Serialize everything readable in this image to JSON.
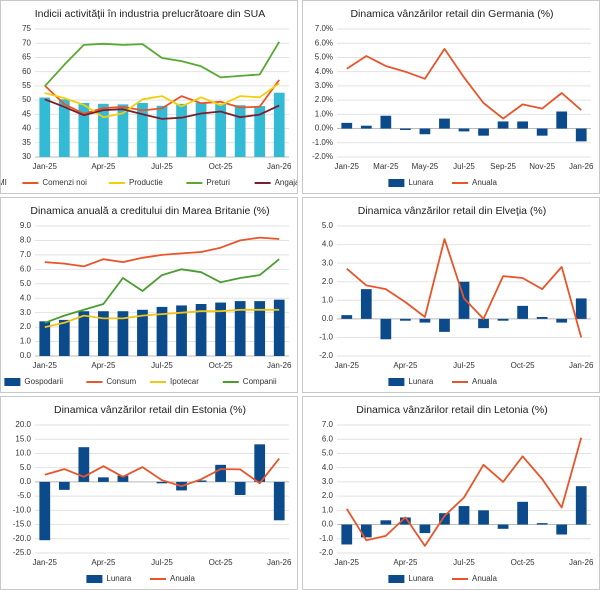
{
  "chart_data": [
    {
      "type": "combo",
      "title": "Indicii activităţii în industria prelucrătoare din SUA",
      "categories": [
        "Jan-25",
        null,
        null,
        "Apr-25",
        null,
        null,
        "Jul-25",
        null,
        null,
        "Oct-25",
        null,
        null,
        "Jan-26"
      ],
      "series": [
        {
          "name": "PMI",
          "kind": "bar",
          "color": "#33bbd6",
          "values": [
            50.9,
            50.3,
            49.0,
            48.7,
            48.5,
            49.0,
            48.0,
            48.7,
            49.1,
            48.7,
            48.2,
            47.9,
            52.6
          ]
        },
        {
          "name": "Comenzi noi",
          "kind": "line",
          "color": "#e8552a",
          "values": [
            55.1,
            48.6,
            45.2,
            47.2,
            47.6,
            46.4,
            47.1,
            51.4,
            48.9,
            49.4,
            47.4,
            47.7,
            57.1
          ]
        },
        {
          "name": "Productie",
          "kind": "line",
          "color": "#f2cf0a",
          "values": [
            52.5,
            50.7,
            48.3,
            44.0,
            45.4,
            50.3,
            51.4,
            47.8,
            51.0,
            48.2,
            51.4,
            51.0,
            55.9
          ]
        },
        {
          "name": "Preturi",
          "kind": "line",
          "color": "#58a832",
          "values": [
            54.9,
            62.4,
            69.4,
            69.8,
            69.4,
            69.7,
            64.8,
            63.7,
            61.9,
            58.0,
            58.5,
            59.0,
            70.5
          ]
        },
        {
          "name": "Angajati",
          "kind": "line",
          "color": "#7a1f2e",
          "values": [
            50.3,
            47.6,
            44.7,
            46.5,
            46.8,
            45.0,
            43.4,
            43.8,
            45.3,
            46.0,
            44.0,
            44.9,
            48.1
          ]
        }
      ],
      "ylim": [
        30,
        75
      ],
      "yticks": [
        30,
        35,
        40,
        45,
        50,
        55,
        60,
        65,
        70,
        75
      ],
      "grid": true
    },
    {
      "type": "combo",
      "title": "Dinamica vânzărilor retail din Germania (%)",
      "categories": [
        "Jan-25",
        null,
        "Mar-25",
        null,
        "May-25",
        null,
        "Jul-25",
        null,
        "Sep-25",
        null,
        "Nov-25",
        null,
        "Jan-26"
      ],
      "series": [
        {
          "name": "Lunara",
          "kind": "bar",
          "color": "#0b4a8b",
          "values": [
            0.4,
            0.2,
            0.9,
            -0.1,
            -0.4,
            0.7,
            -0.2,
            -0.5,
            0.5,
            0.5,
            -0.5,
            1.2,
            -0.9
          ]
        },
        {
          "name": "Anuala",
          "kind": "line",
          "color": "#e8552a",
          "values": [
            4.2,
            5.1,
            4.4,
            4.0,
            3.5,
            5.6,
            3.6,
            1.8,
            0.7,
            1.7,
            1.4,
            2.5,
            1.3
          ]
        }
      ],
      "ylim": [
        -2,
        7
      ],
      "yticks": [
        {
          "value": -2,
          "label": "-2.0%"
        },
        {
          "value": -1,
          "label": "-1.0%"
        },
        {
          "value": 0,
          "label": "0.0%"
        },
        {
          "value": 1,
          "label": "1.0%"
        },
        {
          "value": 2,
          "label": "2.0%"
        },
        {
          "value": 3,
          "label": "3.0%"
        },
        {
          "value": 4,
          "label": "4.0%"
        },
        {
          "value": 5,
          "label": "5.0%"
        },
        {
          "value": 6,
          "label": "6.0%"
        },
        {
          "value": 7,
          "label": "7.0%"
        }
      ],
      "grid": true
    },
    {
      "type": "combo",
      "title": "Dinamica anuală a creditului din Marea Britanie (%)",
      "categories": [
        "Jan-25",
        null,
        null,
        "Apr-25",
        null,
        null,
        "Jul-25",
        null,
        null,
        "Oct-25",
        null,
        null,
        "Jan-26"
      ],
      "series": [
        {
          "name": "Gospodarii",
          "kind": "bar",
          "color": "#0b4a8b",
          "values": [
            2.4,
            2.5,
            3.1,
            3.1,
            3.1,
            3.2,
            3.4,
            3.5,
            3.6,
            3.7,
            3.8,
            3.8,
            3.9
          ]
        },
        {
          "name": "Consum",
          "kind": "line",
          "color": "#e8552a",
          "values": [
            6.5,
            6.4,
            6.2,
            6.7,
            6.5,
            6.8,
            7.0,
            7.1,
            7.2,
            7.5,
            8.0,
            8.2,
            8.1
          ]
        },
        {
          "name": "Ipotecar",
          "kind": "line",
          "color": "#f0c419",
          "values": [
            2.0,
            2.3,
            2.8,
            2.6,
            2.6,
            2.8,
            2.9,
            3.0,
            3.1,
            3.1,
            3.2,
            3.2,
            3.2
          ]
        },
        {
          "name": "Companii",
          "kind": "line",
          "color": "#4a9e30",
          "values": [
            2.3,
            2.8,
            3.2,
            3.6,
            5.4,
            4.5,
            5.6,
            6.0,
            5.8,
            5.1,
            5.4,
            5.6,
            6.7
          ]
        }
      ],
      "ylim": [
        0,
        9
      ],
      "yticks": [
        {
          "value": 0,
          "label": "0.0"
        },
        {
          "value": 1,
          "label": "1.0"
        },
        {
          "value": 2,
          "label": "2.0"
        },
        {
          "value": 3,
          "label": "3.0"
        },
        {
          "value": 4,
          "label": "4.0"
        },
        {
          "value": 5,
          "label": "5.0"
        },
        {
          "value": 6,
          "label": "6.0"
        },
        {
          "value": 7,
          "label": "7.0"
        },
        {
          "value": 8,
          "label": "8.0"
        },
        {
          "value": 9,
          "label": "9.0"
        }
      ],
      "grid": true
    },
    {
      "type": "combo",
      "title": "Dinamica vânzărilor retail din Elveţia (%)",
      "categories": [
        "Jan-25",
        null,
        null,
        "Apr-25",
        null,
        null,
        "Jul-25",
        null,
        null,
        "Oct-25",
        null,
        null,
        "Jan-26"
      ],
      "series": [
        {
          "name": "Lunara",
          "kind": "bar",
          "color": "#0b4a8b",
          "values": [
            0.2,
            1.6,
            -1.1,
            -0.1,
            -0.2,
            -0.7,
            2.0,
            -0.5,
            -0.1,
            0.7,
            0.1,
            -0.2,
            1.1
          ]
        },
        {
          "name": "Anuala",
          "kind": "line",
          "color": "#e8552a",
          "values": [
            2.7,
            1.8,
            1.6,
            0.9,
            0.1,
            4.3,
            1.1,
            0.0,
            2.3,
            2.2,
            1.6,
            2.8,
            -1.0
          ]
        }
      ],
      "ylim": [
        -2,
        5
      ],
      "yticks": [
        {
          "value": -2,
          "label": "-2.0"
        },
        {
          "value": -1,
          "label": "-1.0"
        },
        {
          "value": 0,
          "label": "0.0"
        },
        {
          "value": 1,
          "label": "1.0"
        },
        {
          "value": 2,
          "label": "2.0"
        },
        {
          "value": 3,
          "label": "3.0"
        },
        {
          "value": 4,
          "label": "4.0"
        },
        {
          "value": 5,
          "label": "5.0"
        }
      ],
      "grid": true
    },
    {
      "type": "combo",
      "title": "Dinamica vânzărilor retail din Estonia (%)",
      "categories": [
        "Jan-25",
        null,
        null,
        "Apr-25",
        null,
        null,
        "Jul-25",
        null,
        null,
        "Oct-25",
        null,
        null,
        "Jan-26"
      ],
      "series": [
        {
          "name": "Lunara",
          "kind": "bar",
          "color": "#0b4a8b",
          "values": [
            -20.5,
            -2.8,
            12.2,
            1.6,
            2.2,
            0.0,
            -0.5,
            -3.0,
            0.5,
            6.0,
            -4.6,
            13.2,
            -13.5
          ]
        },
        {
          "name": "Anuala",
          "kind": "line",
          "color": "#e8552a",
          "values": [
            2.5,
            4.5,
            1.8,
            5.5,
            1.8,
            5.2,
            0.6,
            -1.5,
            0.9,
            4.5,
            4.4,
            -0.5,
            8.2
          ]
        }
      ],
      "ylim": [
        -25,
        20
      ],
      "yticks": [
        {
          "value": -25,
          "label": "-25.0"
        },
        {
          "value": -20,
          "label": "-20.0"
        },
        {
          "value": -15,
          "label": "-15.0"
        },
        {
          "value": -10,
          "label": "-10.0"
        },
        {
          "value": -5,
          "label": "-5.0"
        },
        {
          "value": 0,
          "label": "0.0"
        },
        {
          "value": 5,
          "label": "5.0"
        },
        {
          "value": 10,
          "label": "10.0"
        },
        {
          "value": 15,
          "label": "15.0"
        },
        {
          "value": 20,
          "label": "20.0"
        }
      ],
      "grid": true
    },
    {
      "type": "combo",
      "title": "Dinamica vânzărilor retail din Letonia (%)",
      "categories": [
        "Jan-25",
        null,
        null,
        "Apr-25",
        null,
        null,
        "Jul-25",
        null,
        null,
        "Oct-25",
        null,
        null,
        "Jan-26"
      ],
      "series": [
        {
          "name": "Lunara",
          "kind": "bar",
          "color": "#0b4a8b",
          "values": [
            -1.4,
            -0.9,
            0.3,
            0.5,
            -0.6,
            0.8,
            1.3,
            1.0,
            -0.3,
            1.6,
            0.1,
            -0.7,
            2.7
          ]
        },
        {
          "name": "Anuala",
          "kind": "line",
          "color": "#e8552a",
          "values": [
            1.1,
            -1.1,
            -0.8,
            0.5,
            -1.5,
            0.6,
            1.9,
            4.2,
            3.0,
            4.8,
            3.2,
            1.2,
            6.1
          ]
        }
      ],
      "ylim": [
        -2,
        7
      ],
      "yticks": [
        {
          "value": -2,
          "label": "-2.0"
        },
        {
          "value": -1,
          "label": "-1.0"
        },
        {
          "value": 0,
          "label": "0.0"
        },
        {
          "value": 1,
          "label": "1.0"
        },
        {
          "value": 2,
          "label": "2.0"
        },
        {
          "value": 3,
          "label": "3.0"
        },
        {
          "value": 4,
          "label": "4.0"
        },
        {
          "value": 5,
          "label": "5.0"
        },
        {
          "value": 6,
          "label": "6.0"
        },
        {
          "value": 7,
          "label": "7.0"
        }
      ],
      "grid": true
    }
  ]
}
